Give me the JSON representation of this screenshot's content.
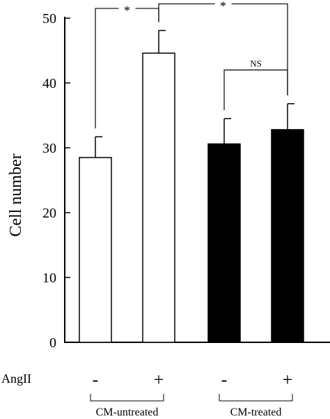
{
  "chart_data": {
    "type": "bar",
    "ylabel": "Cell number",
    "ylim": [
      0,
      50
    ],
    "yticks": [
      0,
      10,
      20,
      30,
      40,
      50
    ],
    "row_label": "AngII",
    "bars": [
      {
        "group": "CM-untreated",
        "angii": "-",
        "value": 28.5,
        "error": 3.2,
        "fill": "#ffffff"
      },
      {
        "group": "CM-untreated",
        "angii": "+",
        "value": 44.6,
        "error": 3.5,
        "fill": "#ffffff"
      },
      {
        "group": "CM-treated",
        "angii": "-",
        "value": 30.6,
        "error": 3.9,
        "fill": "#000000"
      },
      {
        "group": "CM-treated",
        "angii": "+",
        "value": 32.8,
        "error": 4.0,
        "fill": "#000000"
      }
    ],
    "groups": [
      {
        "label": "CM-untreated",
        "bars": [
          0,
          1
        ]
      },
      {
        "label": "CM-treated",
        "bars": [
          2,
          3
        ]
      }
    ],
    "comparisons": [
      {
        "from": 0,
        "to": 1,
        "label": "*",
        "level": 51.5
      },
      {
        "from": 1,
        "to": 3,
        "label": "*",
        "level": 52.2
      },
      {
        "from": 2,
        "to": 3,
        "label": "NS",
        "level": 42.0
      }
    ]
  }
}
